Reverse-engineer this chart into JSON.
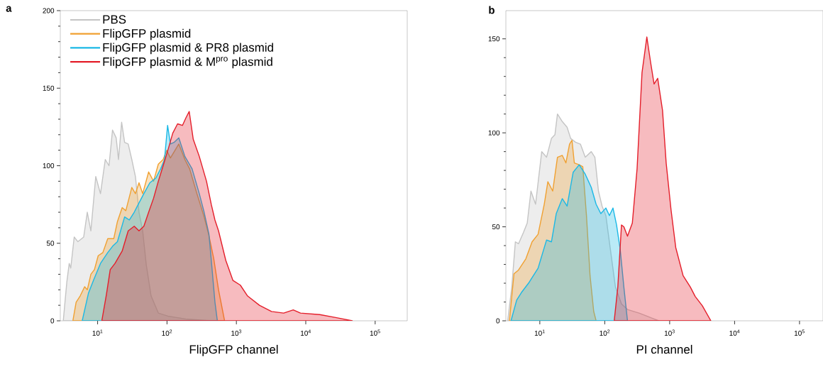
{
  "chart_data": [
    {
      "type": "area",
      "title": "a",
      "xlabel": "FlipGFP channel",
      "log": "x",
      "xlim": [
        2.9,
        290000
      ],
      "xticks": [
        {
          "value": 10,
          "label": "10$^{1}$"
        },
        {
          "value": 100,
          "label": "10$^{2}$"
        },
        {
          "value": 1000,
          "label": "10$^{3}$"
        },
        {
          "value": 10000,
          "label": "10$^{4}$"
        },
        {
          "value": 100000,
          "label": "10$^{5}$"
        }
      ],
      "ylim": [
        0,
        200
      ],
      "yticks": [
        0,
        50,
        100,
        150,
        200
      ],
      "legend": "top left",
      "series": [
        {
          "name": "PBS",
          "color": "#c4c4c4",
          "x": [
            3.2,
            3.6,
            3.9,
            4.1,
            4.6,
            5.2,
            6.3,
            7.1,
            8.0,
            9.4,
            11,
            12.9,
            14.6,
            16.4,
            18.5,
            20,
            22.2,
            24.5,
            27.6,
            31.1,
            35.1,
            39.5,
            44.6,
            50.3,
            59,
            75,
            103,
            142,
            196,
            435,
            553
          ],
          "values": [
            0,
            25,
            37,
            34,
            54,
            51,
            54,
            70,
            58,
            93,
            82,
            104,
            100,
            123,
            118,
            104,
            128,
            115,
            114,
            104,
            93,
            70,
            58,
            36,
            16,
            5,
            3,
            2,
            1,
            0,
            0
          ]
        },
        {
          "name": "FlipGFP plasmid",
          "color": "#f0a030",
          "x": [
            4.4,
            4.9,
            5.6,
            6.5,
            7.1,
            8.0,
            9.0,
            10.2,
            11.9,
            14,
            17.1,
            19.3,
            22.6,
            25.5,
            31.1,
            35.1,
            39.5,
            44.6,
            54.4,
            64,
            75,
            88,
            99,
            112,
            148,
            181,
            212,
            270,
            343,
            402,
            472,
            553,
            676
          ],
          "values": [
            0,
            12,
            16,
            22,
            20,
            30,
            33,
            42,
            44,
            53,
            53,
            64,
            73,
            71,
            86,
            82,
            89,
            82,
            96,
            90,
            101,
            104,
            110,
            105,
            114,
            104,
            98,
            82,
            67,
            55,
            40,
            20,
            0
          ]
        },
        {
          "name": "FlipGFP plasmid & PR8 plasmid",
          "color": "#1ab8e6",
          "x": [
            6.0,
            7.4,
            8.7,
            11,
            14,
            16.4,
            19.3,
            24.5,
            28.7,
            33.7,
            39.5,
            46.4,
            56.6,
            69,
            81,
            92,
            102,
            112,
            126,
            148,
            181,
            230,
            292,
            343,
            402,
            435,
            491,
            532
          ],
          "values": [
            0,
            18,
            26,
            37,
            44,
            48,
            51,
            67,
            65,
            70,
            76,
            82,
            89,
            92,
            98,
            104,
            126,
            114,
            115,
            118,
            106,
            98,
            82,
            70,
            56,
            39,
            12,
            0
          ]
        },
        {
          "name": "FlipGFP plasmid & M$^{pro}$ plasmid",
          "color": "#e41e2a",
          "x": [
            11.5,
            13.4,
            15.2,
            17.8,
            22.6,
            27.6,
            33.7,
            39.5,
            46.4,
            54.4,
            64,
            75,
            88,
            103,
            121,
            142,
            167,
            188,
            209,
            239,
            292,
            371,
            435,
            491,
            553,
            703,
            893,
            1140,
            1450,
            2150,
            3210,
            4800,
            6600,
            8400,
            15900,
            27800,
            46800
          ],
          "values": [
            0,
            17,
            33,
            37,
            45,
            58,
            61,
            58,
            61,
            70,
            79,
            90,
            100,
            110,
            121,
            127,
            126,
            131,
            135,
            117,
            106,
            90,
            75,
            65,
            58,
            39,
            26,
            23,
            16,
            10,
            6,
            5,
            7,
            5,
            4,
            2,
            0
          ]
        }
      ]
    },
    {
      "type": "area",
      "title": "b",
      "xlabel": "PI channel",
      "log": "x",
      "xlim": [
        3.0,
        230000
      ],
      "xticks": [
        {
          "value": 10,
          "label": "10$^{1}$"
        },
        {
          "value": 100,
          "label": "10$^{2}$"
        },
        {
          "value": 1000,
          "label": "10$^{3}$"
        },
        {
          "value": 10000,
          "label": "10$^{4}$"
        },
        {
          "value": 100000,
          "label": "10$^{5}$"
        }
      ],
      "ylim": [
        0,
        165
      ],
      "yticks": [
        0,
        50,
        100,
        150
      ],
      "series": [
        {
          "color": "#c4c4c4",
          "x": [
            3.2,
            3.7,
            4.2,
            4.7,
            5.6,
            6.4,
            7.3,
            8.6,
            10.7,
            12.7,
            15.1,
            17.1,
            18.7,
            22.2,
            26.3,
            29.9,
            35.5,
            42.2,
            50.1,
            62,
            70.5,
            80,
            91,
            104,
            146,
            181,
            224,
            344,
            575,
            682
          ],
          "values": [
            0,
            18,
            42,
            41,
            47,
            52,
            69,
            62,
            90,
            87,
            97,
            99,
            110,
            106,
            103,
            97,
            95,
            94,
            87,
            90,
            87,
            69,
            61,
            56,
            18,
            9,
            6,
            4,
            1,
            0
          ]
        },
        {
          "color": "#f0a030",
          "x": [
            3.4,
            4.0,
            4.7,
            6.1,
            7.6,
            9.4,
            11.7,
            13.3,
            15.8,
            18.7,
            22.2,
            25.2,
            28.7,
            31.3,
            34.0,
            40.4,
            45.9,
            52.3,
            59.4,
            67.6,
            73.6
          ],
          "values": [
            0,
            25,
            27,
            33,
            42,
            46,
            62,
            74,
            69,
            87,
            88,
            84,
            94,
            96,
            84,
            83,
            82,
            56,
            24,
            5,
            0
          ]
        },
        {
          "color": "#1ab8e6",
          "x": [
            3.6,
            4.4,
            5.2,
            6.7,
            9.4,
            12.7,
            15.1,
            17.9,
            22.2,
            26.3,
            32.6,
            40.4,
            50.1,
            62,
            73.6,
            87,
            104,
            118,
            134,
            152,
            173,
            197,
            224
          ],
          "values": [
            0,
            11,
            15,
            20,
            28,
            43,
            42,
            57,
            65,
            61,
            79,
            83,
            78,
            71,
            62,
            57,
            60,
            56,
            60,
            51,
            38,
            18,
            0
          ]
        },
        {
          "color": "#e41e2a",
          "x": [
            140,
            159,
            181,
            197,
            224,
            266,
            315,
            375,
            445,
            506,
            575,
            654,
            776,
            883,
            1050,
            1240,
            1610,
            2080,
            2470,
            3190,
            4310
          ],
          "values": [
            0,
            18,
            51,
            50,
            45,
            52,
            81,
            132,
            151,
            138,
            126,
            129,
            112,
            84,
            59,
            39,
            24,
            18,
            13,
            8,
            0
          ]
        }
      ]
    }
  ]
}
